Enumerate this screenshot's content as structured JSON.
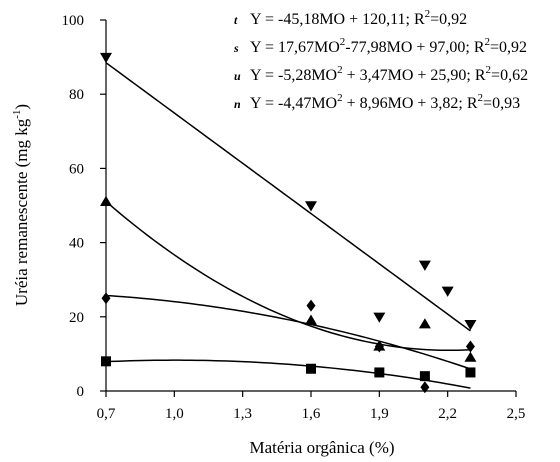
{
  "chart_data": {
    "type": "scatter",
    "xlabel": "Matéria orgânica (%)",
    "ylabel": "Uréia remanescente (mg kg",
    "ylabel_sup": "-1",
    "ylabel_end": ")",
    "xlim": [
      0.7,
      2.5
    ],
    "ylim": [
      0,
      100
    ],
    "x_ticks": [
      "0,7",
      "1,0",
      "1,3",
      "1,6",
      "1,9",
      "2,2",
      "2,5"
    ],
    "x_tick_values": [
      0.7,
      1.0,
      1.3,
      1.6,
      1.9,
      2.2,
      2.5
    ],
    "y_ticks": [
      "0",
      "20",
      "40",
      "60",
      "80",
      "100"
    ],
    "y_tick_values": [
      0,
      20,
      40,
      60,
      80,
      100
    ],
    "grid": false,
    "legend_position": "top-right",
    "series": [
      {
        "marker": "triangle-down",
        "legend_symbol": "t",
        "equation": "Y = -45,18MO + 120,11; R",
        "r2_sup": "2",
        "r2_value": "=0,92",
        "coefficients": [
          0,
          -45.18,
          120.11
        ],
        "x": [
          0.7,
          1.6,
          1.9,
          2.1,
          2.2,
          2.3
        ],
        "y": [
          90,
          50,
          20,
          34,
          27,
          18
        ]
      },
      {
        "marker": "triangle-up",
        "legend_symbol": "s",
        "equation": "Y = 17,67MO",
        "eq_sup": "2",
        "equation_rest": "-77,98MO + 97,00; R",
        "r2_sup": "2",
        "r2_value": "=0,92",
        "coefficients": [
          17.67,
          -77.98,
          97.0
        ],
        "x": [
          0.7,
          1.6,
          1.9,
          2.1,
          2.3
        ],
        "y": [
          51,
          19,
          12,
          18,
          9
        ]
      },
      {
        "marker": "diamond",
        "legend_symbol": "u",
        "equation": "Y = -5,28MO",
        "eq_sup": "2",
        "equation_rest": " + 3,47MO + 25,90; R",
        "r2_sup": "2",
        "r2_value": "=0,62",
        "coefficients": [
          -5.28,
          3.47,
          25.9
        ],
        "x": [
          0.7,
          1.6,
          1.9,
          2.1,
          2.3
        ],
        "y": [
          25,
          23,
          12,
          1,
          12
        ]
      },
      {
        "marker": "square",
        "legend_symbol": "n",
        "equation": "Y = -4,47MO",
        "eq_sup": "2",
        "equation_rest": " + 8,96MO + 3,82; R",
        "r2_sup": "2",
        "r2_value": "=0,93",
        "coefficients": [
          -4.47,
          8.96,
          3.82
        ],
        "x": [
          0.7,
          1.6,
          1.9,
          2.1,
          2.3
        ],
        "y": [
          8,
          6,
          5,
          4,
          5
        ]
      }
    ]
  }
}
